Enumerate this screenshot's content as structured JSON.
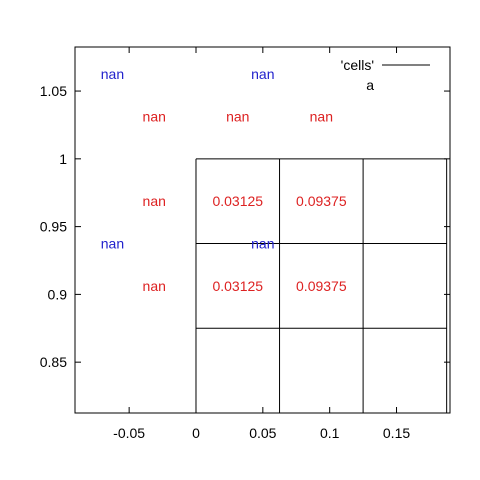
{
  "chart_data": {
    "type": "scatter",
    "title": "",
    "xlabel": "",
    "ylabel": "",
    "xlim": [
      -0.0905,
      0.19
    ],
    "ylim": [
      0.8125,
      1.0825
    ],
    "xticks": [
      -0.05,
      0,
      0.05,
      0.1,
      0.15
    ],
    "xtick_labels": [
      "-0.05",
      "0",
      "0.05",
      "0.1",
      "0.15"
    ],
    "yticks": [
      0.85,
      0.9,
      0.95,
      1,
      1.05
    ],
    "ytick_labels": [
      "0.85",
      "0.9",
      "0.95",
      "1",
      "1.05"
    ],
    "grid": false,
    "legend": {
      "position": "top-right",
      "entries": [
        {
          "label": "'cells'",
          "color": "#000000"
        },
        {
          "label": "a",
          "color": "#000000"
        }
      ]
    },
    "cells": {
      "x_edges": [
        0,
        0.0625,
        0.125,
        0.1875
      ],
      "y_edges": [
        0.8125,
        0.875,
        0.9375,
        1.0
      ],
      "color": "#000000"
    },
    "series": [
      {
        "color": "#dd2222",
        "points": [
          {
            "x": -0.03125,
            "y": 1.03125,
            "label": "nan"
          },
          {
            "x": 0.03125,
            "y": 1.03125,
            "label": "nan"
          },
          {
            "x": 0.09375,
            "y": 1.03125,
            "label": "nan"
          },
          {
            "x": -0.03125,
            "y": 0.96875,
            "label": "nan"
          },
          {
            "x": 0.03125,
            "y": 0.96875,
            "label": "0.03125"
          },
          {
            "x": 0.09375,
            "y": 0.96875,
            "label": "0.09375"
          },
          {
            "x": -0.03125,
            "y": 0.90625,
            "label": "nan"
          },
          {
            "x": 0.03125,
            "y": 0.90625,
            "label": "0.03125"
          },
          {
            "x": 0.09375,
            "y": 0.90625,
            "label": "0.09375"
          }
        ]
      },
      {
        "color": "#2222cc",
        "points": [
          {
            "x": -0.0625,
            "y": 1.0625,
            "label": "nan"
          },
          {
            "x": 0.05,
            "y": 1.0625,
            "label": "nan"
          },
          {
            "x": -0.0625,
            "y": 0.9375,
            "label": "nan"
          },
          {
            "x": 0.05,
            "y": 0.9375,
            "label": "nan"
          }
        ]
      }
    ]
  }
}
